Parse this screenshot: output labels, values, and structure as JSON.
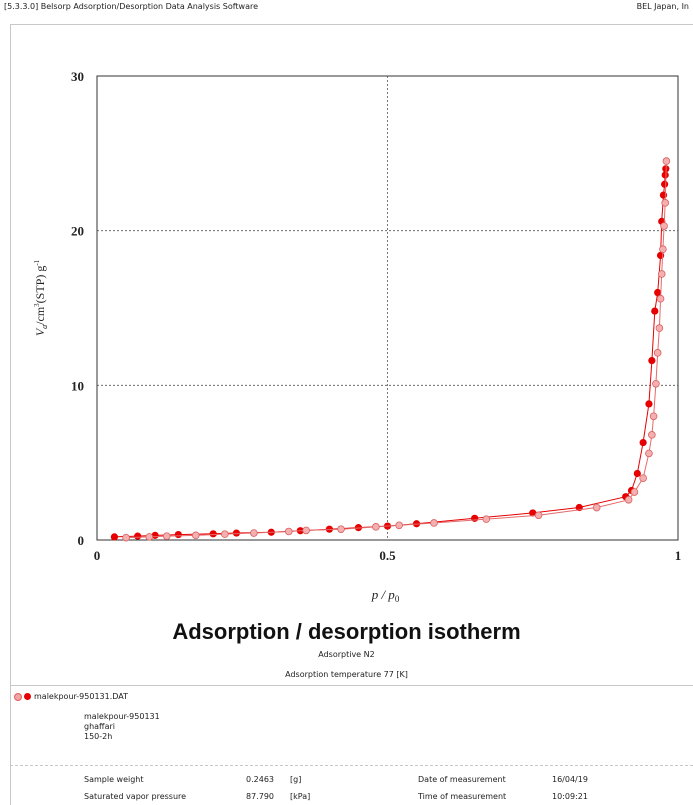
{
  "header": {
    "software": "[5.3.3.0] Belsorp Adsorption/Desorption Data Analysis Software",
    "company": "BEL Japan, In"
  },
  "chart_data": {
    "type": "scatter",
    "title": "Adsorption / desorption isotherm",
    "xlabel": "p / p",
    "xlabel_sub": "0",
    "ylabel": "V",
    "ylabel_sub": "a",
    "ylabel_unit": "/cm",
    "ylabel_unit_sup": "3",
    "ylabel_unit2": "(STP) g",
    "ylabel_unit2_sup": "-1",
    "xlim": [
      0,
      1
    ],
    "ylim": [
      0,
      30
    ],
    "x_ticks": [
      0,
      0.5,
      1
    ],
    "x_tick_labels": [
      "0",
      "0.5",
      "1"
    ],
    "y_ticks": [
      0,
      10,
      20,
      30
    ],
    "y_tick_labels": [
      "0",
      "10",
      "20",
      "30"
    ],
    "grid": "dotted at x=0.5, y=10, y=20",
    "series": [
      {
        "marker": "filled",
        "color": "#e60000",
        "x": [
          0.03,
          0.07,
          0.1,
          0.14,
          0.2,
          0.24,
          0.3,
          0.35,
          0.4,
          0.45,
          0.5,
          0.55,
          0.65,
          0.75,
          0.83,
          0.91,
          0.92,
          0.93,
          0.94,
          0.95,
          0.955,
          0.96,
          0.965,
          0.97,
          0.972,
          0.975,
          0.977,
          0.978,
          0.979
        ],
        "y": [
          0.2,
          0.25,
          0.3,
          0.35,
          0.4,
          0.45,
          0.5,
          0.6,
          0.7,
          0.8,
          0.9,
          1.05,
          1.4,
          1.75,
          2.1,
          2.8,
          3.2,
          4.3,
          6.3,
          8.8,
          11.6,
          14.8,
          16.0,
          18.4,
          20.6,
          22.3,
          23.0,
          23.6,
          24.0
        ]
      },
      {
        "marker": "open",
        "color": "#f08a8a",
        "x": [
          0.98,
          0.978,
          0.976,
          0.974,
          0.972,
          0.97,
          0.968,
          0.965,
          0.962,
          0.958,
          0.955,
          0.95,
          0.94,
          0.925,
          0.915,
          0.86,
          0.76,
          0.67,
          0.58,
          0.52,
          0.48,
          0.42,
          0.36,
          0.33,
          0.27,
          0.22,
          0.17,
          0.12,
          0.09,
          0.05
        ],
        "y": [
          24.5,
          21.8,
          20.3,
          18.8,
          17.2,
          15.6,
          13.7,
          12.1,
          10.1,
          8.0,
          6.8,
          5.6,
          4.0,
          3.1,
          2.6,
          2.1,
          1.6,
          1.35,
          1.1,
          0.95,
          0.85,
          0.7,
          0.62,
          0.55,
          0.45,
          0.38,
          0.3,
          0.25,
          0.2,
          0.15
        ]
      }
    ],
    "subtitle1": "Adsorptive N2",
    "subtitle2": "Adsorption temperature 77 [K]"
  },
  "file": {
    "name": "malekpour-950131.DAT",
    "lines": [
      "malekpour-950131",
      "ghaffari",
      "150-2h"
    ]
  },
  "info": {
    "sample_weight_label": "Sample weight",
    "sample_weight_value": "0.2463",
    "sample_weight_unit": "[g]",
    "svp_label": "Saturated vapor pressure",
    "svp_value": "87.790",
    "svp_unit": "[kPa]",
    "date_label": "Date of measurement",
    "date_value": "16/04/19",
    "time_label": "Time of measurement",
    "time_value": "10:09:21"
  },
  "colors": {
    "adsorption": "#e60000",
    "desorption": "#f08a8a",
    "grid": "#555555"
  }
}
